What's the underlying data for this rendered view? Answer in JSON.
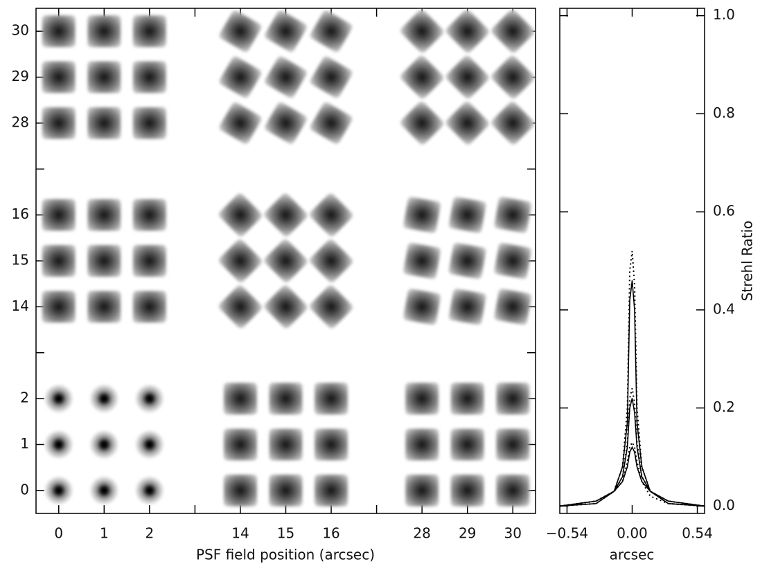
{
  "chart_data": [
    {
      "type": "image-grid",
      "xlabel": "PSF field position (arcsec)",
      "categories": [
        "0",
        "1",
        "2",
        null,
        "14",
        "15",
        "16",
        null,
        "28",
        "29",
        "30"
      ],
      "y_categories": [
        "0",
        "1",
        "2",
        null,
        "14",
        "15",
        "16",
        null,
        "28",
        "29",
        "30"
      ]
    },
    {
      "type": "line",
      "xlabel": "arcsec",
      "ylabel": "Strehl Ratio",
      "x": [
        -0.6,
        -0.3,
        -0.15,
        -0.08,
        -0.04,
        -0.02,
        0,
        0.02,
        0.04,
        0.08,
        0.15,
        0.3,
        0.6
      ],
      "xlim": [
        -0.6,
        0.6
      ],
      "xticks": [
        {
          "value": -0.54,
          "label": "−0.54"
        },
        {
          "value": 0,
          "label": "0.00"
        },
        {
          "value": 0.54,
          "label": "0.54"
        }
      ],
      "ylim": [
        -0.015,
        1.015
      ],
      "yticks": [
        {
          "value": 0,
          "label": "0.0"
        },
        {
          "value": 0.2,
          "label": "0.2"
        },
        {
          "value": 0.4,
          "label": "0.4"
        },
        {
          "value": 0.6,
          "label": "0.6"
        },
        {
          "value": 0.8,
          "label": "0.8"
        },
        {
          "value": 1,
          "label": "1.0"
        }
      ],
      "series": [
        {
          "color": "#000000",
          "dash": false,
          "values": [
            0,
            0.005,
            0.03,
            0.08,
            0.17,
            0.42,
            0.46,
            0.4,
            0.17,
            0.08,
            0.03,
            0.005,
            0
          ]
        },
        {
          "color": "#000000",
          "dash": true,
          "values": [
            0,
            0.005,
            0.03,
            0.08,
            0.2,
            0.48,
            0.52,
            0.45,
            0.2,
            0.08,
            0.03,
            0.005,
            0
          ]
        },
        {
          "color": "#000000",
          "dash": false,
          "values": [
            0,
            0.01,
            0.03,
            0.06,
            0.12,
            0.2,
            0.22,
            0.19,
            0.12,
            0.06,
            0.03,
            0.01,
            0
          ]
        },
        {
          "color": "#000000",
          "dash": true,
          "values": [
            0,
            0.01,
            0.03,
            0.06,
            0.13,
            0.22,
            0.24,
            0.21,
            0.13,
            0.06,
            0.03,
            0.01,
            0
          ]
        },
        {
          "color": "#000000",
          "dash": false,
          "values": [
            0,
            0.01,
            0.03,
            0.05,
            0.08,
            0.11,
            0.12,
            0.11,
            0.08,
            0.05,
            0.03,
            0.01,
            0
          ]
        },
        {
          "color": "#000000",
          "dash": true,
          "values": [
            0,
            0.01,
            0.03,
            0.05,
            0.09,
            0.12,
            0.13,
            0.12,
            0.09,
            0.05,
            0.02,
            0.005,
            0
          ]
        }
      ]
    }
  ]
}
